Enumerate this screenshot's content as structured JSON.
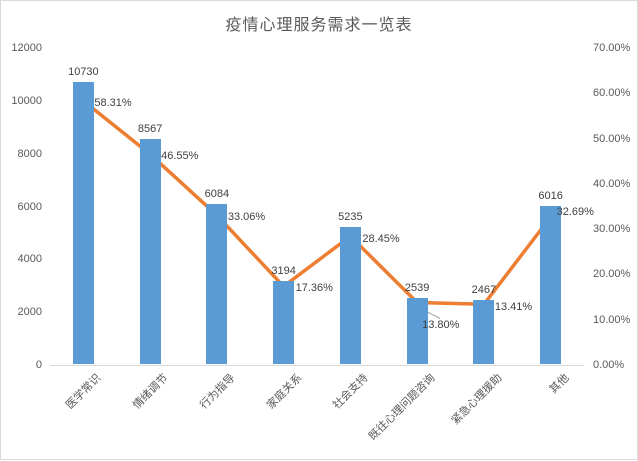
{
  "window": {
    "background": "#ffffff",
    "frame_border_color": "#d9d9d9"
  },
  "chart_data": {
    "type": "combo",
    "title": "疫情心理服务需求一览表",
    "categories": [
      "医学常识",
      "情绪调节",
      "行为指导",
      "家庭关系",
      "社会支持",
      "既往心理问题咨询",
      "紧急心理援助",
      "其他"
    ],
    "series": [
      {
        "type": "bar",
        "axis": "left",
        "color": "#5b9bd5",
        "values": [
          10730,
          8567,
          6084,
          3194,
          5235,
          2539,
          2467,
          6016
        ],
        "labels": [
          "10730",
          "8567",
          "6084",
          "3194",
          "5235",
          "2539",
          "2467",
          "6016"
        ]
      },
      {
        "type": "line",
        "axis": "right",
        "color": "#ed7d31",
        "values": [
          58.31,
          46.55,
          33.06,
          17.36,
          28.45,
          13.8,
          13.41,
          32.69
        ],
        "labels": [
          "58.31%",
          "46.55%",
          "33.06%",
          "17.36%",
          "28.45%",
          "13.80%",
          "13.41%",
          "32.69%"
        ],
        "label_offsets": [
          [
            11,
            -4
          ],
          [
            11,
            -4
          ],
          [
            11,
            -4
          ],
          [
            12,
            -4
          ],
          [
            12,
            -3
          ],
          [
            5,
            16
          ],
          [
            11,
            -3
          ],
          [
            6,
            -11
          ]
        ],
        "label_leader": {
          "point_index": 5,
          "color": "#a6a6a6"
        }
      }
    ],
    "left_axis": {
      "min": 0,
      "max": 12000,
      "step": 2000,
      "ticks": [
        "0",
        "2000",
        "4000",
        "6000",
        "8000",
        "10000",
        "12000"
      ]
    },
    "right_axis": {
      "min": 0,
      "max": 70,
      "ticks": [
        "0.00%",
        "10.00%",
        "20.00%",
        "30.00%",
        "40.00%",
        "50.00%",
        "60.00%",
        "70.00%"
      ]
    },
    "grid": "off",
    "legend": "none",
    "axis_line_color": "#d9d9d9",
    "text_color": "#595959"
  }
}
